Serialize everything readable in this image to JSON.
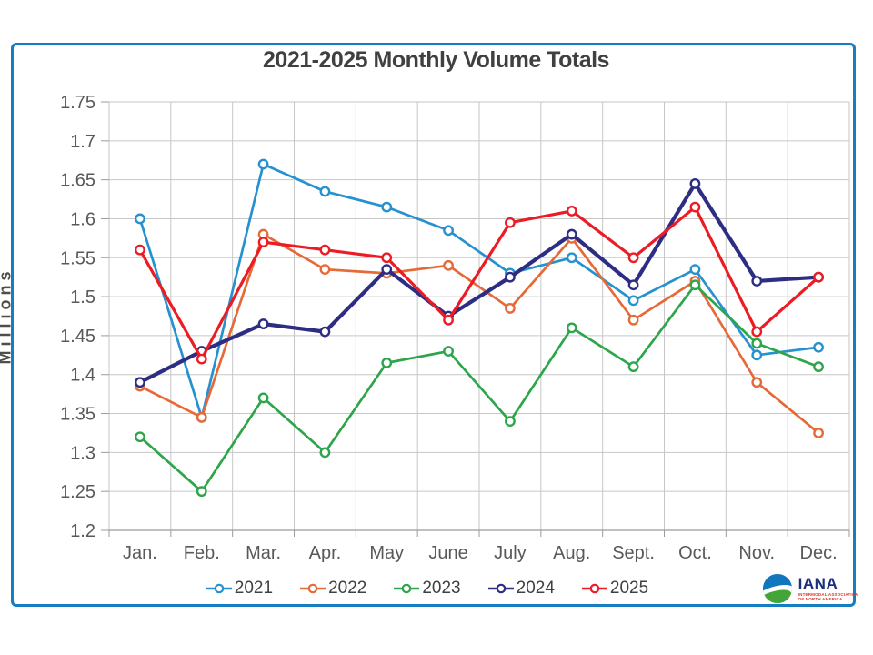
{
  "page": {
    "title": "2021-2025 Monthly Volume Totals"
  },
  "chart_data": {
    "type": "line",
    "title": "2021-2025 Monthly Volume Totals",
    "xlabel": "",
    "ylabel": "Millions",
    "categories": [
      "Jan.",
      "Feb.",
      "Mar.",
      "Apr.",
      "May",
      "June",
      "July",
      "Aug.",
      "Sept.",
      "Oct.",
      "Nov.",
      "Dec."
    ],
    "ylim": [
      1.2,
      1.75
    ],
    "ytick_step": 0.05,
    "ytick_labels": [
      "1.75",
      "1.7",
      "1.65",
      "1.6",
      "1.55",
      "1.5",
      "1.45",
      "1.4",
      "1.35",
      "1.3",
      "1.25",
      "1.2"
    ],
    "grid": true,
    "legend_position": "bottom",
    "series": [
      {
        "name": "2021",
        "color": "#2691cf",
        "line_width": 2.7,
        "values": [
          1.6,
          1.345,
          1.67,
          1.635,
          1.615,
          1.585,
          1.53,
          1.55,
          1.495,
          1.535,
          1.425,
          1.435
        ]
      },
      {
        "name": "2022",
        "color": "#e66a38",
        "line_width": 2.7,
        "values": [
          1.385,
          1.345,
          1.58,
          1.535,
          1.53,
          1.54,
          1.485,
          1.575,
          1.47,
          1.52,
          1.39,
          1.325
        ]
      },
      {
        "name": "2023",
        "color": "#2da54b",
        "line_width": 2.7,
        "values": [
          1.32,
          1.25,
          1.37,
          1.3,
          1.415,
          1.43,
          1.34,
          1.46,
          1.41,
          1.515,
          1.44,
          1.41
        ]
      },
      {
        "name": "2024",
        "color": "#2d2e83",
        "line_width": 4.2,
        "values": [
          1.39,
          1.43,
          1.465,
          1.455,
          1.535,
          1.475,
          1.525,
          1.58,
          1.515,
          1.645,
          1.52,
          1.525
        ]
      },
      {
        "name": "2025",
        "color": "#ec1b24",
        "line_width": 3.2,
        "values": [
          1.56,
          1.42,
          1.57,
          1.56,
          1.55,
          1.47,
          1.595,
          1.61,
          1.55,
          1.615,
          1.455,
          1.525
        ]
      }
    ]
  },
  "logo": {
    "name": "IANA",
    "subtitle_line1": "INTERMODAL ASSOCIATION",
    "subtitle_line2": "OF NORTH AMERICA"
  },
  "colors": {
    "border": "#177dc1",
    "grid": "#c6c6c6",
    "axis_line": "#9b9b9b",
    "axis_text": "#595959",
    "title_text": "#404040"
  }
}
